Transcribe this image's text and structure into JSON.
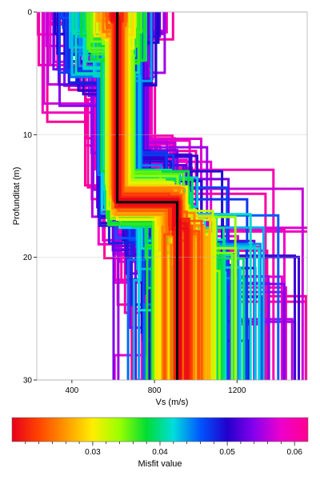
{
  "chart_data": {
    "type": "line",
    "subtype": "step-profile",
    "xlabel": "Vs (m/s)",
    "ylabel": "Profunditat (m)",
    "xlim": [
      230,
      1540
    ],
    "ylim": [
      0,
      30
    ],
    "y_inverted": true,
    "x_ticks": [
      400,
      800,
      1200
    ],
    "y_ticks": [
      0,
      10,
      20,
      30
    ],
    "best_model": {
      "color": "#000000",
      "layers": [
        {
          "vs": 620,
          "top": 0,
          "bottom": 15.5
        },
        {
          "vs": 910,
          "top": 15.5,
          "bottom": 30
        }
      ]
    },
    "colorbar": {
      "label": "Misfit value",
      "range": [
        0.018,
        0.062
      ],
      "ticks": [
        0.03,
        0.04,
        0.05,
        0.06
      ],
      "tick_labels": [
        "0.03",
        "0.04",
        "0.05",
        "0.06"
      ],
      "colors": [
        "#e8001a",
        "#ff4400",
        "#ff9900",
        "#ffee00",
        "#99ff00",
        "#00dd33",
        "#00dddd",
        "#0055ff",
        "#2200cc",
        "#8800ee",
        "#ee00cc",
        "#ff0090"
      ]
    }
  }
}
